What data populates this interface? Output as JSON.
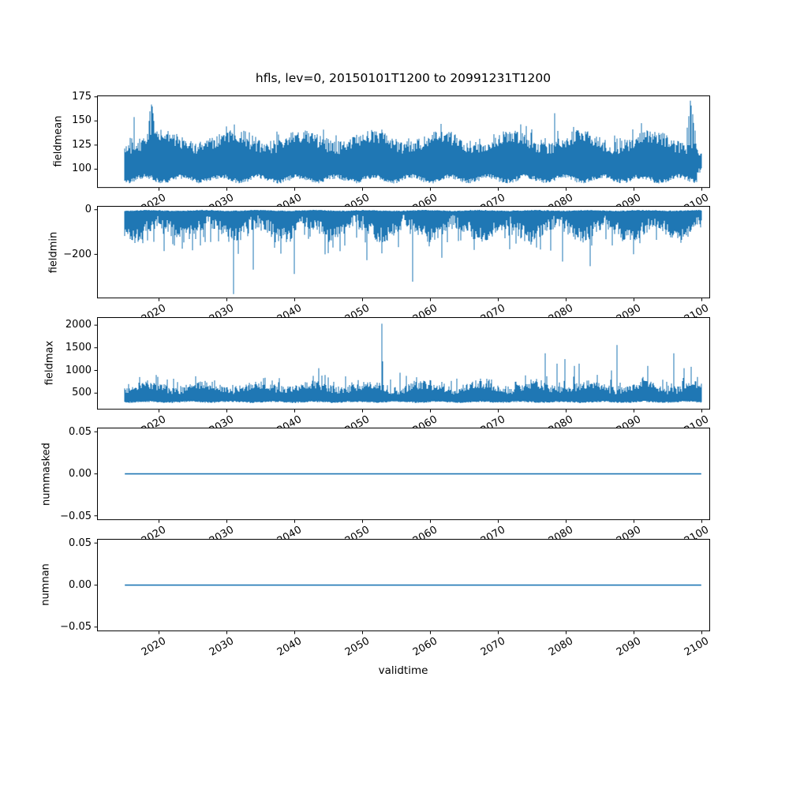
{
  "figure": {
    "background": "#ffffff",
    "text_color": "#000000"
  },
  "chart_data": {
    "type": "line",
    "title": "hfls, lev=0, 20150101T1200 to 20991231T1200",
    "xlabel": "validtime",
    "x_range": [
      2015.0,
      2100.0
    ],
    "xlim": [
      2010.9,
      2101.3
    ],
    "xticks": [
      2020,
      2030,
      2040,
      2050,
      2060,
      2070,
      2080,
      2090,
      2100
    ],
    "xtick_rotation_deg": 30,
    "line_color": "#1f77b4",
    "axis_color": "#000000",
    "grid": false,
    "legend": null,
    "subplots": [
      {
        "ylabel": "fieldmean",
        "ylim": [
          80.6,
          176.4
        ],
        "ytick_vals": [
          100,
          125,
          150,
          175
        ],
        "ytick_labels": [
          "100",
          "125",
          "150",
          "175"
        ],
        "style": "noisy-band",
        "seed": 42,
        "band": {
          "lo": [
            90,
            2.5,
            2.5,
            0.13
          ],
          "hi": [
            128,
            6,
            7,
            0.071
          ],
          "burst_p": 0.05,
          "burst_amp": 9
        },
        "spike_dir": "up",
        "spikes": [
          [
            2016.4,
            154
          ],
          [
            2018.6,
            150
          ],
          [
            2018.75,
            160
          ],
          [
            2018.9,
            167
          ],
          [
            2019.0,
            165
          ],
          [
            2019.15,
            158
          ],
          [
            2019.3,
            150
          ],
          [
            2078.4,
            158
          ],
          [
            2097.9,
            143
          ],
          [
            2098.2,
            155
          ],
          [
            2098.4,
            171
          ],
          [
            2098.55,
            166
          ],
          [
            2098.7,
            157
          ],
          [
            2098.9,
            148
          ],
          [
            2099.1,
            140
          ]
        ],
        "end_tail": {
          "from": 2099.35,
          "lo": 99,
          "hi": 117
        },
        "summary": {
          "baseline_mean": 105,
          "noise_band": [
            85,
            140
          ],
          "max_value": 171
        }
      },
      {
        "ylabel": "fieldmin",
        "ylim": [
          -396.8,
          16.8
        ],
        "ytick_vals": [
          0,
          -200
        ],
        "ytick_labels": [
          "0",
          "−200"
        ],
        "style": "noisy-band",
        "seed": 1337,
        "band": {
          "lo": [
            -85,
            30,
            35,
            0.1
          ],
          "hi": [
            -4,
            1.5,
            2,
            0.09
          ],
          "burst_p": 0.06,
          "burst_amp": -55
        },
        "spike_dir": "down",
        "spikes": [
          [
            2017.7,
            -150
          ],
          [
            2020.8,
            -185
          ],
          [
            2023.5,
            -175
          ],
          [
            2026.1,
            -160
          ],
          [
            2031.0,
            -378
          ],
          [
            2033.9,
            -268
          ],
          [
            2040.0,
            -288
          ],
          [
            2044.5,
            -200
          ],
          [
            2046.7,
            -186
          ],
          [
            2050.7,
            -226
          ],
          [
            2055.3,
            -168
          ],
          [
            2057.4,
            -322
          ],
          [
            2061.7,
            -215
          ],
          [
            2066.5,
            -180
          ],
          [
            2071.7,
            -177
          ],
          [
            2077.8,
            -183
          ],
          [
            2079.6,
            -232
          ],
          [
            2083.6,
            -253
          ],
          [
            2086.9,
            -160
          ],
          [
            2091.0,
            -150
          ]
        ],
        "summary": {
          "baseline_band": [
            -130,
            -2
          ],
          "min_value": -378
        }
      },
      {
        "ylabel": "fieldmax",
        "ylim": [
          136,
          2175
        ],
        "ytick_vals": [
          500,
          1000,
          1500,
          2000
        ],
        "ytick_labels": [
          "500",
          "1000",
          "1500",
          "2000"
        ],
        "style": "noisy-band",
        "seed": 2024,
        "band": {
          "lo": [
            305,
            10,
            15,
            0.12
          ],
          "hi": [
            620,
            60,
            90,
            0.09
          ],
          "burst_p": 0.08,
          "burst_amp": 170
        },
        "spike_dir": "up",
        "spikes": [
          [
            2015.5,
            700
          ],
          [
            2018.4,
            780
          ],
          [
            2019.6,
            900
          ],
          [
            2019.85,
            860
          ],
          [
            2021.3,
            800
          ],
          [
            2027.9,
            750
          ],
          [
            2035.4,
            830
          ],
          [
            2035.7,
            840
          ],
          [
            2043.6,
            1050
          ],
          [
            2044.5,
            900
          ],
          [
            2047.5,
            870
          ],
          [
            2052.9,
            2030
          ],
          [
            2053.0,
            1200
          ],
          [
            2054.2,
            800
          ],
          [
            2055.6,
            950
          ],
          [
            2056.5,
            880
          ],
          [
            2058.0,
            850
          ],
          [
            2064.0,
            820
          ],
          [
            2066.7,
            780
          ],
          [
            2069.1,
            800
          ],
          [
            2072.6,
            750
          ],
          [
            2074.9,
            800
          ],
          [
            2077.0,
            1380
          ],
          [
            2078.7,
            1150
          ],
          [
            2079.9,
            1250
          ],
          [
            2081.3,
            1100
          ],
          [
            2082.0,
            1150
          ],
          [
            2086.8,
            1000
          ],
          [
            2087.6,
            1560
          ],
          [
            2092.1,
            1100
          ],
          [
            2095.9,
            1380
          ],
          [
            2097.5,
            1050
          ],
          [
            2098.5,
            1080
          ]
        ],
        "summary": {
          "baseline_band": [
            290,
            750
          ],
          "max_value": 2030
        }
      },
      {
        "ylabel": "nummasked",
        "ylim": [
          -0.055,
          0.055
        ],
        "ytick_vals": [
          0.05,
          0,
          -0.05
        ],
        "ytick_labels": [
          "0.05",
          "0.00",
          "−0.05"
        ],
        "style": "constant",
        "value": 0.0,
        "summary": {
          "constant_value": 0.0
        }
      },
      {
        "ylabel": "numnan",
        "ylim": [
          -0.055,
          0.055
        ],
        "ytick_vals": [
          0.05,
          0,
          -0.05
        ],
        "ytick_labels": [
          "0.05",
          "0.00",
          "−0.05"
        ],
        "style": "constant",
        "value": 0.0,
        "summary": {
          "constant_value": 0.0
        }
      }
    ]
  }
}
